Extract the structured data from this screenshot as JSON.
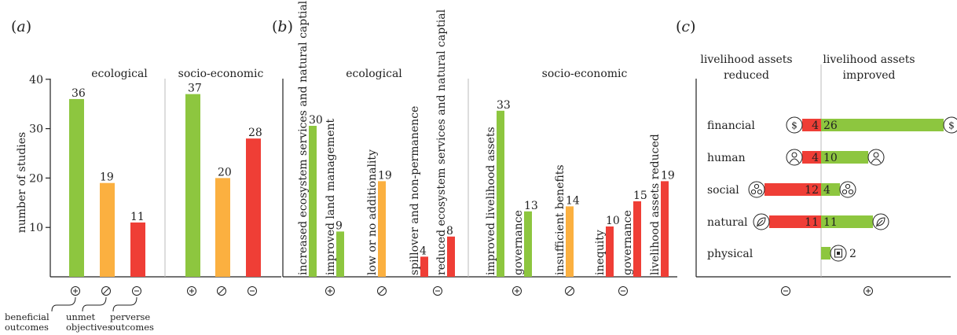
{
  "colors": {
    "green": "#8dc63f",
    "orange": "#fbb040",
    "red": "#ef3e36"
  },
  "panel_a": {
    "letter": "(a)",
    "ylabel": "number of studies",
    "group_labels": [
      "ecological",
      "socio-economic"
    ],
    "legend": [
      "beneficial outcomes",
      "unmet objectives",
      "perverse outcomes"
    ],
    "legend_lines": [
      [
        "beneficial",
        "outcomes"
      ],
      [
        "unmet",
        "objectives"
      ],
      [
        "perverse",
        "outcomes"
      ]
    ],
    "yticks": [
      "10",
      "20",
      "30",
      "40"
    ]
  },
  "panel_b": {
    "letter": "(b)",
    "group_labels": [
      "ecological",
      "socio-economic"
    ]
  },
  "panel_c": {
    "letter": "(c)",
    "left_header": [
      "livelihood assets",
      "reduced"
    ],
    "right_header": [
      "livelihood assets",
      "improved"
    ]
  },
  "chart_data": [
    {
      "type": "bar",
      "panel": "a",
      "ylabel": "number of studies",
      "ylim": [
        0,
        40
      ],
      "yticks": [
        10,
        20,
        30,
        40
      ],
      "groups": [
        "ecological",
        "socio-economic"
      ],
      "categories": [
        "beneficial outcomes",
        "unmet objectives",
        "perverse outcomes"
      ],
      "symbols": [
        "⊕",
        "⊘",
        "⊖"
      ],
      "series": [
        {
          "name": "ecological",
          "values": [
            36,
            19,
            11
          ]
        },
        {
          "name": "socio-economic",
          "values": [
            37,
            20,
            28
          ]
        }
      ]
    },
    {
      "type": "bar",
      "panel": "b",
      "groups": [
        "ecological",
        "socio-economic"
      ],
      "symbols": [
        "⊕",
        "⊘",
        "⊖"
      ],
      "bars": [
        {
          "group": "ecological",
          "outcome": "beneficial",
          "label": "increased ecosystem services and natural captial",
          "value": 30
        },
        {
          "group": "ecological",
          "outcome": "beneficial",
          "label": "improved land management",
          "value": 9
        },
        {
          "group": "ecological",
          "outcome": "unmet",
          "label": "low or no additionality",
          "value": 19
        },
        {
          "group": "ecological",
          "outcome": "perverse",
          "label": "spillover and non-permanence",
          "value": 4
        },
        {
          "group": "ecological",
          "outcome": "perverse",
          "label": "reduced ecosystem services and natural captial",
          "value": 8
        },
        {
          "group": "socio-economic",
          "outcome": "beneficial",
          "label": "improved livelihood assets",
          "value": 33
        },
        {
          "group": "socio-economic",
          "outcome": "beneficial",
          "label": "governance",
          "value": 13
        },
        {
          "group": "socio-economic",
          "outcome": "unmet",
          "label": "insufficient benefits",
          "value": 14
        },
        {
          "group": "socio-economic",
          "outcome": "perverse",
          "label": "inequity",
          "value": 10
        },
        {
          "group": "socio-economic",
          "outcome": "perverse",
          "label": "governance",
          "value": 15
        },
        {
          "group": "socio-economic",
          "outcome": "perverse",
          "label": "livelihood assets reduced",
          "value": 19
        }
      ]
    },
    {
      "type": "bar",
      "panel": "c",
      "orientation": "horizontal-diverging",
      "symbols": [
        "⊖",
        "⊕"
      ],
      "categories": [
        "financial",
        "human",
        "social",
        "natural",
        "physical"
      ],
      "icons": [
        "dollar-icon",
        "person-icon",
        "group-icon",
        "leaf-icon",
        "building-icon"
      ],
      "series": [
        {
          "name": "livelihood assets reduced",
          "values": [
            4,
            4,
            12,
            11,
            0
          ]
        },
        {
          "name": "livelihood assets improved",
          "values": [
            26,
            10,
            4,
            11,
            2
          ]
        }
      ]
    }
  ]
}
